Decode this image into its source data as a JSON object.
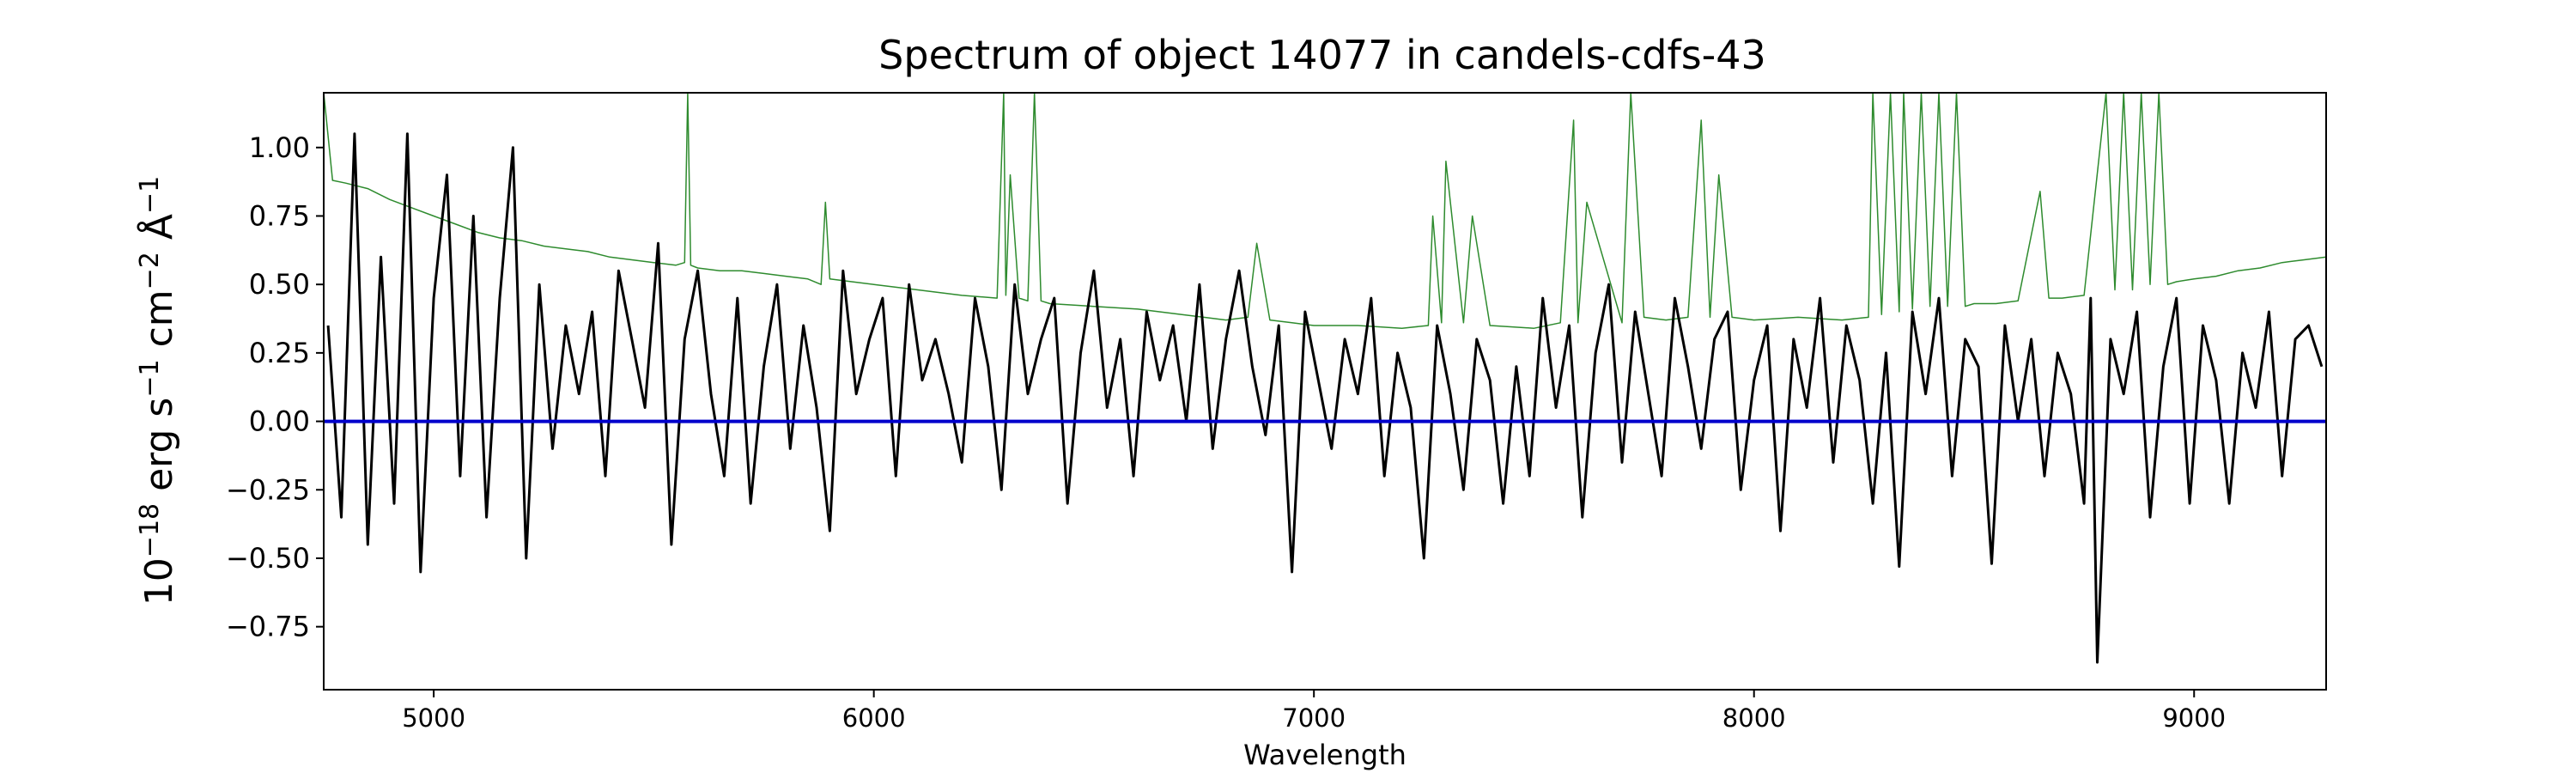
{
  "chart_data": {
    "type": "line",
    "title": "Spectrum of object 14077 in candels-cdfs-43",
    "xlabel": "Wavelength",
    "ylabel_parts": [
      "10",
      "−18",
      " erg s",
      "−1",
      " cm",
      "−2",
      " Å",
      "−1"
    ],
    "xlim": [
      4750,
      9300
    ],
    "ylim": [
      -0.98,
      1.2
    ],
    "x_ticks": [
      5000,
      6000,
      7000,
      8000,
      9000
    ],
    "x_tick_labels": [
      "5000",
      "6000",
      "7000",
      "8000",
      "9000"
    ],
    "y_ticks": [
      1.0,
      0.75,
      0.5,
      0.25,
      0.0,
      -0.25,
      -0.5,
      -0.75
    ],
    "y_tick_labels": [
      "1.00",
      "0.75",
      "0.50",
      "0.25",
      "0.00",
      "−0.25",
      "−0.50",
      "−0.75"
    ],
    "series": [
      {
        "role": "flux",
        "color": "#000000",
        "x": [
          4760,
          4790,
          4820,
          4850,
          4880,
          4910,
          4940,
          4970,
          5000,
          5030,
          5060,
          5090,
          5120,
          5150,
          5180,
          5210,
          5240,
          5270,
          5300,
          5330,
          5360,
          5390,
          5420,
          5450,
          5480,
          5510,
          5540,
          5570,
          5600,
          5630,
          5660,
          5690,
          5720,
          5750,
          5780,
          5810,
          5840,
          5870,
          5900,
          5930,
          5960,
          5990,
          6020,
          6050,
          6080,
          6110,
          6140,
          6170,
          6200,
          6230,
          6260,
          6290,
          6320,
          6350,
          6380,
          6410,
          6440,
          6470,
          6500,
          6530,
          6560,
          6590,
          6620,
          6650,
          6680,
          6710,
          6740,
          6770,
          6800,
          6830,
          6860,
          6890,
          6920,
          6950,
          6980,
          7010,
          7040,
          7070,
          7100,
          7130,
          7160,
          7190,
          7220,
          7250,
          7280,
          7310,
          7340,
          7370,
          7400,
          7430,
          7460,
          7490,
          7520,
          7550,
          7580,
          7610,
          7640,
          7670,
          7700,
          7730,
          7760,
          7790,
          7820,
          7850,
          7880,
          7910,
          7940,
          7970,
          8000,
          8030,
          8060,
          8090,
          8120,
          8150,
          8180,
          8210,
          8240,
          8270,
          8300,
          8330,
          8360,
          8390,
          8420,
          8450,
          8480,
          8510,
          8540,
          8570,
          8600,
          8630,
          8660,
          8690,
          8720,
          8750,
          8765,
          8780,
          8810,
          8840,
          8870,
          8900,
          8930,
          8960,
          8990,
          9020,
          9050,
          9080,
          9110,
          9140,
          9170,
          9200,
          9230,
          9260,
          9290
        ],
        "y": [
          0.35,
          -0.35,
          1.05,
          -0.45,
          0.6,
          -0.3,
          1.05,
          -0.55,
          0.45,
          0.9,
          -0.2,
          0.75,
          -0.35,
          0.45,
          1.0,
          -0.5,
          0.5,
          -0.1,
          0.35,
          0.1,
          0.4,
          -0.2,
          0.55,
          0.3,
          0.05,
          0.65,
          -0.45,
          0.3,
          0.55,
          0.1,
          -0.2,
          0.45,
          -0.3,
          0.2,
          0.5,
          -0.1,
          0.35,
          0.05,
          -0.4,
          0.55,
          0.1,
          0.3,
          0.45,
          -0.2,
          0.5,
          0.15,
          0.3,
          0.1,
          -0.15,
          0.45,
          0.2,
          -0.25,
          0.5,
          0.1,
          0.3,
          0.45,
          -0.3,
          0.25,
          0.55,
          0.05,
          0.3,
          -0.2,
          0.4,
          0.15,
          0.35,
          0.0,
          0.5,
          -0.1,
          0.3,
          0.55,
          0.2,
          -0.05,
          0.35,
          -0.55,
          0.4,
          0.15,
          -0.1,
          0.3,
          0.1,
          0.45,
          -0.2,
          0.25,
          0.05,
          -0.5,
          0.35,
          0.1,
          -0.25,
          0.3,
          0.15,
          -0.3,
          0.2,
          -0.2,
          0.45,
          0.05,
          0.35,
          -0.35,
          0.25,
          0.5,
          -0.15,
          0.4,
          0.1,
          -0.2,
          0.45,
          0.2,
          -0.1,
          0.3,
          0.4,
          -0.25,
          0.15,
          0.35,
          -0.4,
          0.3,
          0.05,
          0.45,
          -0.15,
          0.35,
          0.15,
          -0.3,
          0.25,
          -0.53,
          0.4,
          0.1,
          0.45,
          -0.2,
          0.3,
          0.2,
          -0.52,
          0.35,
          0.0,
          0.3,
          -0.2,
          0.25,
          0.1,
          -0.3,
          0.45,
          -0.88,
          0.3,
          0.1,
          0.4,
          -0.35,
          0.2,
          0.45,
          -0.3,
          0.35,
          0.15,
          -0.3,
          0.25,
          0.05,
          0.4,
          -0.2,
          0.3,
          0.35,
          0.2
        ],
        "width": 3
      },
      {
        "role": "error",
        "color": "#2e8b2e",
        "x": [
          4750,
          4770,
          4800,
          4850,
          4900,
          4950,
          5000,
          5050,
          5100,
          5150,
          5200,
          5250,
          5300,
          5350,
          5400,
          5450,
          5500,
          5550,
          5570,
          5577,
          5584,
          5600,
          5650,
          5700,
          5750,
          5800,
          5850,
          5880,
          5890,
          5900,
          5950,
          6000,
          6100,
          6200,
          6280,
          6295,
          6300,
          6310,
          6330,
          6350,
          6365,
          6380,
          6400,
          6500,
          6600,
          6700,
          6800,
          6850,
          6870,
          6900,
          6950,
          7000,
          7100,
          7200,
          7260,
          7270,
          7290,
          7300,
          7340,
          7360,
          7400,
          7500,
          7560,
          7590,
          7600,
          7620,
          7700,
          7720,
          7750,
          7800,
          7850,
          7880,
          7900,
          7920,
          7950,
          8000,
          8100,
          8200,
          8260,
          8270,
          8290,
          8310,
          8330,
          8340,
          8360,
          8380,
          8400,
          8420,
          8440,
          8460,
          8480,
          8500,
          8550,
          8600,
          8650,
          8670,
          8700,
          8750,
          8800,
          8820,
          8840,
          8860,
          8880,
          8900,
          8920,
          8940,
          8960,
          9000,
          9050,
          9100,
          9150,
          9200,
          9250,
          9300
        ],
        "y": [
          1.2,
          0.88,
          0.87,
          0.85,
          0.81,
          0.78,
          0.75,
          0.72,
          0.69,
          0.67,
          0.66,
          0.64,
          0.63,
          0.62,
          0.6,
          0.59,
          0.58,
          0.57,
          0.58,
          1.2,
          0.57,
          0.56,
          0.55,
          0.55,
          0.54,
          0.53,
          0.52,
          0.5,
          0.8,
          0.52,
          0.51,
          0.5,
          0.48,
          0.46,
          0.45,
          1.2,
          0.46,
          0.9,
          0.45,
          0.44,
          1.2,
          0.44,
          0.43,
          0.42,
          0.41,
          0.39,
          0.37,
          0.38,
          0.65,
          0.37,
          0.36,
          0.35,
          0.35,
          0.34,
          0.35,
          0.75,
          0.36,
          0.95,
          0.36,
          0.75,
          0.35,
          0.34,
          0.36,
          1.1,
          0.36,
          0.8,
          0.36,
          1.2,
          0.38,
          0.37,
          0.38,
          1.1,
          0.38,
          0.9,
          0.38,
          0.37,
          0.38,
          0.37,
          0.38,
          1.2,
          0.39,
          1.2,
          0.4,
          1.2,
          0.41,
          1.2,
          0.42,
          1.2,
          0.42,
          1.2,
          0.42,
          0.43,
          0.43,
          0.44,
          0.84,
          0.45,
          0.45,
          0.46,
          1.2,
          0.48,
          1.2,
          0.48,
          1.2,
          0.5,
          1.2,
          0.5,
          0.51,
          0.52,
          0.53,
          0.55,
          0.56,
          0.58,
          0.59,
          0.6
        ],
        "width": 1.5
      },
      {
        "role": "zero",
        "color": "#0000cc",
        "x": [
          4750,
          9300
        ],
        "y": [
          0.0,
          0.0
        ],
        "width": 4
      }
    ],
    "grid": false,
    "legend": "none"
  }
}
